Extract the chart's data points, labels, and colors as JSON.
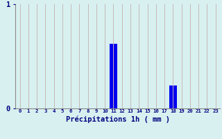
{
  "categories": [
    0,
    1,
    2,
    3,
    4,
    5,
    6,
    7,
    8,
    9,
    10,
    11,
    12,
    13,
    14,
    15,
    16,
    17,
    18,
    19,
    20,
    21,
    22,
    23
  ],
  "values": [
    0,
    0,
    0,
    0,
    0,
    0,
    0,
    0,
    0,
    0,
    0,
    0.62,
    0,
    0,
    0,
    0,
    0,
    0,
    0.22,
    0,
    0,
    0,
    0,
    0
  ],
  "bar_color": "#0000ee",
  "background_color": "#d8f0f0",
  "grid_color": "#c8b8b8",
  "text_color": "#000080",
  "xlabel": "Précipitations 1h ( mm )",
  "ylim": [
    0,
    1.0
  ],
  "yticks": [
    0,
    1
  ],
  "bar_width": 0.85
}
